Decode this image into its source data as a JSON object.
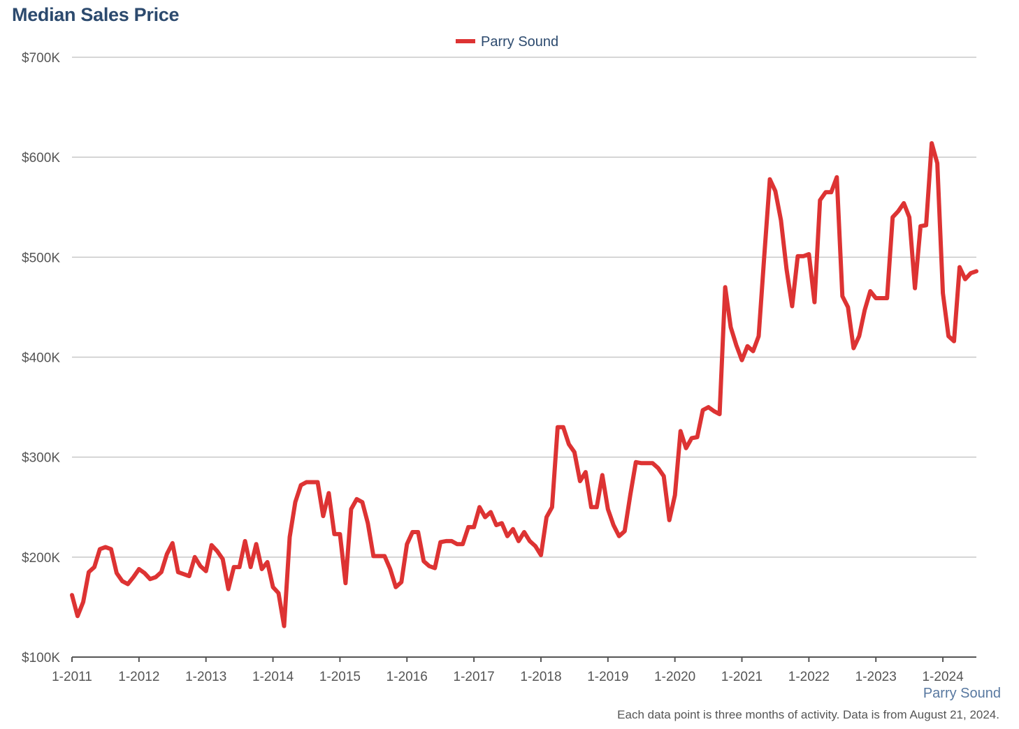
{
  "chart_data": {
    "type": "line",
    "title": "Median Sales Price",
    "legend": {
      "position": "top-center",
      "entries": [
        "Parry Sound"
      ]
    },
    "series": [
      {
        "name": "Parry Sound",
        "color": "#dd3333",
        "x": [
          "1-2011",
          "2-2011",
          "3-2011",
          "4-2011",
          "5-2011",
          "6-2011",
          "7-2011",
          "8-2011",
          "9-2011",
          "10-2011",
          "11-2011",
          "12-2011",
          "1-2012",
          "2-2012",
          "3-2012",
          "4-2012",
          "5-2012",
          "6-2012",
          "7-2012",
          "8-2012",
          "9-2012",
          "10-2012",
          "11-2012",
          "12-2012",
          "1-2013",
          "2-2013",
          "3-2013",
          "4-2013",
          "5-2013",
          "6-2013",
          "7-2013",
          "8-2013",
          "9-2013",
          "10-2013",
          "11-2013",
          "12-2013",
          "1-2014",
          "2-2014",
          "3-2014",
          "4-2014",
          "5-2014",
          "6-2014",
          "7-2014",
          "8-2014",
          "9-2014",
          "10-2014",
          "11-2014",
          "12-2014",
          "1-2015",
          "2-2015",
          "3-2015",
          "4-2015",
          "5-2015",
          "6-2015",
          "7-2015",
          "8-2015",
          "9-2015",
          "10-2015",
          "11-2015",
          "12-2015",
          "1-2016",
          "2-2016",
          "3-2016",
          "4-2016",
          "5-2016",
          "6-2016",
          "7-2016",
          "8-2016",
          "9-2016",
          "10-2016",
          "11-2016",
          "12-2016",
          "1-2017",
          "2-2017",
          "3-2017",
          "4-2017",
          "5-2017",
          "6-2017",
          "7-2017",
          "8-2017",
          "9-2017",
          "10-2017",
          "11-2017",
          "12-2017",
          "1-2018",
          "2-2018",
          "3-2018",
          "4-2018",
          "5-2018",
          "6-2018",
          "7-2018",
          "8-2018",
          "9-2018",
          "10-2018",
          "11-2018",
          "12-2018",
          "1-2019",
          "2-2019",
          "3-2019",
          "4-2019",
          "5-2019",
          "6-2019",
          "7-2019",
          "8-2019",
          "9-2019",
          "10-2019",
          "11-2019",
          "12-2019",
          "1-2020",
          "2-2020",
          "3-2020",
          "4-2020",
          "5-2020",
          "6-2020",
          "7-2020",
          "8-2020",
          "9-2020",
          "10-2020",
          "11-2020",
          "12-2020",
          "1-2021",
          "2-2021",
          "3-2021",
          "4-2021",
          "5-2021",
          "6-2021",
          "7-2021",
          "8-2021",
          "9-2021",
          "10-2021",
          "11-2021",
          "12-2021",
          "1-2022",
          "2-2022",
          "3-2022",
          "4-2022",
          "5-2022",
          "6-2022",
          "7-2022",
          "8-2022",
          "9-2022",
          "10-2022",
          "11-2022",
          "12-2022",
          "1-2023",
          "2-2023",
          "3-2023",
          "4-2023",
          "5-2023",
          "6-2023",
          "7-2023",
          "8-2023",
          "9-2023",
          "10-2023",
          "11-2023",
          "12-2023",
          "1-2024",
          "2-2024",
          "3-2024",
          "4-2024",
          "5-2024",
          "6-2024",
          "7-2024"
        ],
        "values": [
          162000,
          141000,
          155000,
          185000,
          190000,
          208000,
          210000,
          208000,
          184000,
          176000,
          173000,
          180000,
          188000,
          184000,
          178000,
          180000,
          185000,
          203000,
          214000,
          185000,
          183000,
          181000,
          200000,
          191000,
          186000,
          212000,
          206000,
          198000,
          168000,
          190000,
          190000,
          216000,
          190000,
          213000,
          188000,
          195000,
          170000,
          164000,
          131000,
          220000,
          255000,
          272000,
          275000,
          275000,
          275000,
          241000,
          264000,
          223000,
          223000,
          174000,
          248000,
          258000,
          255000,
          234000,
          201000,
          201000,
          201000,
          188000,
          170000,
          175000,
          213000,
          225000,
          225000,
          196000,
          191000,
          189000,
          215000,
          216000,
          216000,
          213000,
          213000,
          230000,
          230000,
          250000,
          240000,
          245000,
          232000,
          234000,
          221000,
          228000,
          216000,
          225000,
          216000,
          211000,
          202000,
          240000,
          250000,
          330000,
          330000,
          313000,
          305000,
          276000,
          285000,
          250000,
          250000,
          282000,
          248000,
          232000,
          221000,
          226000,
          262000,
          295000,
          294000,
          294000,
          294000,
          289000,
          281000,
          237000,
          262000,
          326000,
          309000,
          319000,
          320000,
          347000,
          350000,
          346000,
          343000,
          470000,
          430000,
          412000,
          397000,
          411000,
          406000,
          421000,
          501000,
          578000,
          566000,
          537000,
          488000,
          451000,
          501000,
          501000,
          503000,
          455000,
          557000,
          565000,
          565000,
          580000,
          461000,
          450000,
          409000,
          421000,
          447000,
          466000,
          459000,
          459000,
          459000,
          540000,
          546000,
          554000,
          540000,
          469000,
          531000,
          532000,
          614000,
          594000,
          464000,
          421000,
          416000,
          490000,
          478000,
          484000,
          486000
        ]
      }
    ],
    "x_ticks": [
      "1-2011",
      "1-2012",
      "1-2013",
      "1-2014",
      "1-2015",
      "1-2016",
      "1-2017",
      "1-2018",
      "1-2019",
      "1-2020",
      "1-2021",
      "1-2022",
      "1-2023",
      "1-2024"
    ],
    "y_ticks": [
      {
        "value": 100000,
        "label": "$100K"
      },
      {
        "value": 200000,
        "label": "$200K"
      },
      {
        "value": 300000,
        "label": "$300K"
      },
      {
        "value": 400000,
        "label": "$400K"
      },
      {
        "value": 500000,
        "label": "$500K"
      },
      {
        "value": 600000,
        "label": "$600K"
      },
      {
        "value": 700000,
        "label": "$700K"
      }
    ],
    "ylim": [
      100000,
      700000
    ],
    "xlim": [
      "1-2011",
      "7-2024"
    ],
    "grid": true
  },
  "region_label": "Parry Sound",
  "footnote": "Each data point is three months of activity. Data is from August 21, 2024."
}
